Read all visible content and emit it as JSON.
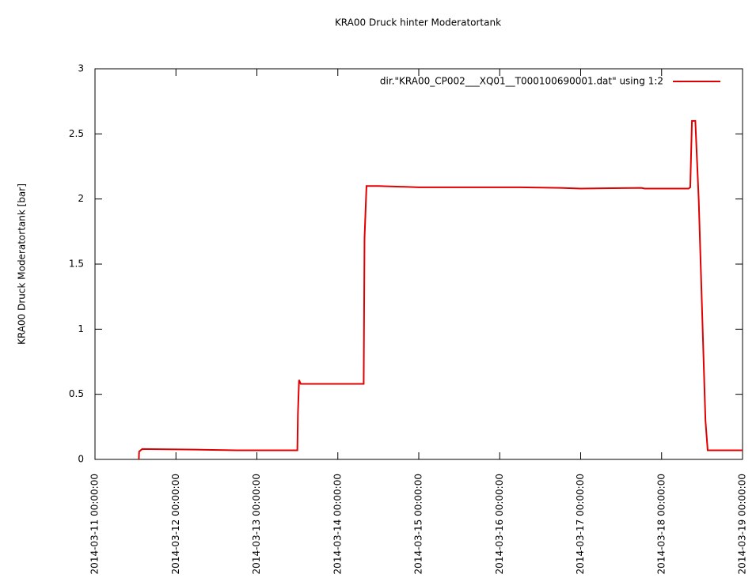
{
  "chart_data": {
    "type": "line",
    "title": "KRA00 Druck hinter Moderatortank",
    "y_label": "KRA00 Druck Moderatortank [bar]",
    "x": [
      "2014-03-11 13:00:00",
      "2014-03-11 13:05:00",
      "2014-03-11 14:00:00",
      "2014-03-12 06:00:00",
      "2014-03-12 18:00:00",
      "2014-03-13 00:00:00",
      "2014-03-13 11:00:00",
      "2014-03-13 12:00:00",
      "2014-03-13 12:10:00",
      "2014-03-13 12:30:00",
      "2014-03-13 13:00:00",
      "2014-03-14 07:40:00",
      "2014-03-14 07:55:00",
      "2014-03-14 08:30:00",
      "2014-03-14 12:00:00",
      "2014-03-15 00:00:00",
      "2014-03-16 06:00:00",
      "2014-03-16 18:00:00",
      "2014-03-17 00:00:00",
      "2014-03-17 18:00:00",
      "2014-03-17 19:00:00",
      "2014-03-18 08:00:00",
      "2014-03-18 08:30:00",
      "2014-03-18 09:00:00",
      "2014-03-18 10:00:00",
      "2014-03-18 10:30:00",
      "2014-03-18 11:00:00",
      "2014-03-18 13:00:00",
      "2014-03-18 13:40:00",
      "2014-03-19 00:00:00"
    ],
    "series": [
      {
        "name": "dir.\"KRA00_CP002___XQ01__T000100690001.dat\" using 1:2",
        "color": "#e00000",
        "values": [
          0,
          0.06,
          0.08,
          0.075,
          0.07,
          0.07,
          0.07,
          0.07,
          0.35,
          0.61,
          0.58,
          0.58,
          1.7,
          2.1,
          2.1,
          2.09,
          2.09,
          2.085,
          2.08,
          2.085,
          2.08,
          2.08,
          2.09,
          2.6,
          2.6,
          2.3,
          2.0,
          0.3,
          0.07,
          0.07
        ]
      }
    ],
    "xlim": [
      "2014-03-11 00:00:00",
      "2014-03-19 00:00:00"
    ],
    "xticks": [
      "2014-03-11 00:00:00",
      "2014-03-12 00:00:00",
      "2014-03-13 00:00:00",
      "2014-03-14 00:00:00",
      "2014-03-15 00:00:00",
      "2014-03-16 00:00:00",
      "2014-03-17 00:00:00",
      "2014-03-18 00:00:00",
      "2014-03-19 00:00:00"
    ],
    "ylim": [
      0,
      3
    ],
    "yticks": [
      0,
      0.5,
      1,
      1.5,
      2,
      2.5,
      3
    ],
    "legend": "top-right"
  }
}
